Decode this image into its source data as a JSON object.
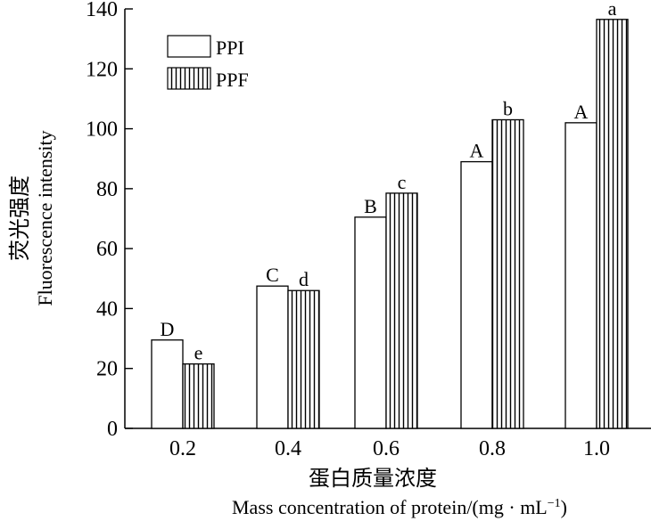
{
  "chart_data": {
    "type": "bar",
    "categories": [
      "0.2",
      "0.4",
      "0.6",
      "0.8",
      "1.0"
    ],
    "series": [
      {
        "name": "PPI",
        "values": [
          29.5,
          47.5,
          70.5,
          89,
          102
        ],
        "labels": [
          "D",
          "C",
          "B",
          "A",
          "A"
        ],
        "pattern": "open"
      },
      {
        "name": "PPF",
        "values": [
          21.5,
          46,
          78.5,
          103,
          136.5
        ],
        "labels": [
          "e",
          "d",
          "c",
          "b",
          "a"
        ],
        "pattern": "vertical-hatch"
      }
    ],
    "ylim": [
      0,
      140
    ],
    "yticks": [
      "0",
      "20",
      "40",
      "60",
      "80",
      "100",
      "120",
      "140"
    ],
    "ylabel_cn": "荧光强度",
    "ylabel_en": "Fluorescence intensity",
    "xlabel_cn": "蛋白质量浓度",
    "xlabel_en": "Mass concentration of protein/(mg · mL",
    "xlabel_en_sup": "−1",
    "xlabel_en_end": ")",
    "legend_position": "top-left",
    "grid": false,
    "colors": {
      "axis": "#000000",
      "bar_fill": "#ffffff",
      "hatch": "#000000"
    }
  }
}
